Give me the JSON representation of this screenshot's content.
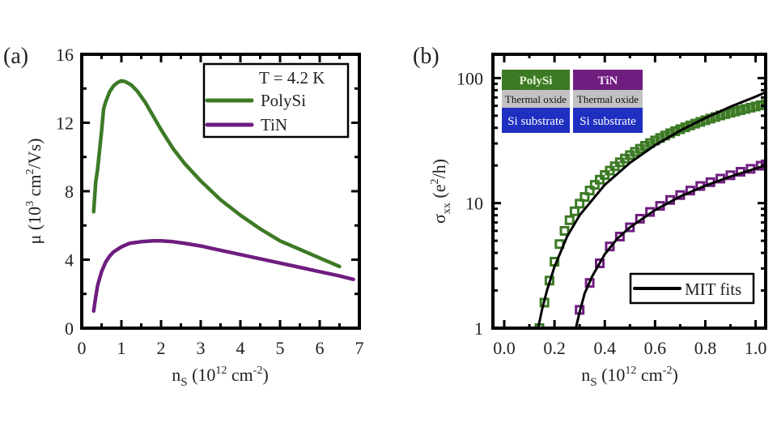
{
  "colors": {
    "polysi": "#3c7a25",
    "tin": "#6f1d7f",
    "fit": "#000000",
    "thermal_oxide": "#c2c2c2",
    "si_substrate": "#1f2fc0"
  },
  "chart_data": [
    {
      "panel": "(a)",
      "type": "line",
      "title": "",
      "xlabel": "n_S (10^12 cm^-2)",
      "xlabel_parts": {
        "main": "n",
        "sub": "S",
        "rest": " (10",
        "sup": "12",
        "rest2": " cm",
        "sup2": "-2",
        "end": ")"
      },
      "ylabel": "μ (10^3 cm^2/Vs)",
      "ylabel_parts": {
        "main": "μ (10",
        "sup": "3",
        "rest": " cm",
        "sup2": "2",
        "end": "/Vs)"
      },
      "xlim": [
        0,
        7
      ],
      "ylim": [
        0,
        16
      ],
      "xticks": [
        "0",
        "1",
        "2",
        "3",
        "4",
        "5",
        "6",
        "7"
      ],
      "yticks": [
        "0",
        "4",
        "8",
        "12",
        "16"
      ],
      "grid": false,
      "legend": {
        "placement": "top-right",
        "header": "T = 4.2 K",
        "entries": [
          "PolySi",
          "TiN"
        ]
      },
      "series": [
        {
          "name": "PolySi",
          "x": [
            0.3,
            0.35,
            0.4,
            0.5,
            0.55,
            0.6,
            0.7,
            0.8,
            0.9,
            1.0,
            1.1,
            1.25,
            1.4,
            1.6,
            1.8,
            2.0,
            2.3,
            2.6,
            3.0,
            3.5,
            4.0,
            4.5,
            5.0,
            5.5,
            6.0,
            6.5
          ],
          "y": [
            6.8,
            8.5,
            9.3,
            11.5,
            12.8,
            13.2,
            13.8,
            14.15,
            14.35,
            14.45,
            14.4,
            14.2,
            13.85,
            13.2,
            12.4,
            11.6,
            10.5,
            9.6,
            8.6,
            7.5,
            6.6,
            5.8,
            5.1,
            4.6,
            4.1,
            3.6
          ]
        },
        {
          "name": "TiN",
          "x": [
            0.3,
            0.35,
            0.4,
            0.5,
            0.6,
            0.7,
            0.8,
            1.0,
            1.2,
            1.5,
            1.8,
            2.0,
            2.3,
            2.6,
            3.0,
            3.5,
            4.0,
            4.5,
            5.0,
            5.5,
            6.0,
            6.5,
            6.85
          ],
          "y": [
            1.0,
            1.8,
            2.5,
            3.3,
            3.85,
            4.2,
            4.45,
            4.75,
            4.95,
            5.05,
            5.1,
            5.1,
            5.05,
            4.95,
            4.8,
            4.55,
            4.3,
            4.05,
            3.8,
            3.55,
            3.3,
            3.05,
            2.85
          ]
        }
      ]
    },
    {
      "panel": "(b)",
      "type": "scatter",
      "title": "",
      "xlabel": "n_S (10^12 cm^-2)",
      "xlabel_parts": {
        "main": "n",
        "sub": "S",
        "rest": " (10",
        "sup": "12",
        "rest2": " cm",
        "sup2": "-2",
        "end": ")"
      },
      "ylabel": "σ_xx (e^2/h)",
      "ylabel_parts": {
        "main": "σ",
        "sub": "xx",
        "rest": " (e",
        "sup": "2",
        "end": "/h)"
      },
      "xlim": [
        -0.045,
        1.04
      ],
      "ylim": [
        1,
        155
      ],
      "yscale": "log",
      "xticks": [
        "0.0",
        "0.2",
        "0.4",
        "0.6",
        "0.8",
        "1.0"
      ],
      "yticks": [
        "1",
        "10",
        "100"
      ],
      "grid": false,
      "legend": {
        "placement": "bottom-right",
        "entries": [
          "MIT fits"
        ]
      },
      "inset_stacks": [
        {
          "gate": "PolySi",
          "oxide": "Thermal oxide",
          "substrate": "Si substrate"
        },
        {
          "gate": "TiN",
          "oxide": "Thermal oxide",
          "substrate": "Si substrate"
        }
      ],
      "series": [
        {
          "name": "PolySi",
          "marker": "open-square",
          "x": [
            0.14,
            0.16,
            0.18,
            0.2,
            0.22,
            0.24,
            0.26,
            0.28,
            0.3,
            0.32,
            0.34,
            0.36,
            0.38,
            0.4,
            0.42,
            0.44,
            0.46,
            0.48,
            0.5,
            0.52,
            0.54,
            0.56,
            0.58,
            0.6,
            0.62,
            0.64,
            0.66,
            0.68,
            0.7,
            0.72,
            0.74,
            0.76,
            0.78,
            0.8,
            0.82,
            0.84,
            0.86,
            0.88,
            0.9,
            0.92,
            0.94,
            0.96,
            0.98,
            1.0,
            1.02,
            1.04
          ],
          "y": [
            1.0,
            1.6,
            2.4,
            3.4,
            4.7,
            6.0,
            7.3,
            8.6,
            9.9,
            11.2,
            12.6,
            14.0,
            15.4,
            16.8,
            18.2,
            19.7,
            21.2,
            22.7,
            24.2,
            25.7,
            27.2,
            28.7,
            30.2,
            31.7,
            33.2,
            34.7,
            36.2,
            37.6,
            39.0,
            40.4,
            41.8,
            43.2,
            44.6,
            46.0,
            47.4,
            48.8,
            50.2,
            51.5,
            52.8,
            54.1,
            55.4,
            56.7,
            58.0,
            59.3,
            60.6,
            62.0
          ]
        },
        {
          "name": "TiN",
          "marker": "open-square",
          "x": [
            0.3,
            0.34,
            0.38,
            0.42,
            0.46,
            0.5,
            0.54,
            0.58,
            0.62,
            0.66,
            0.7,
            0.74,
            0.78,
            0.82,
            0.86,
            0.9,
            0.94,
            0.98,
            1.02,
            1.04
          ],
          "y": [
            1.4,
            2.3,
            3.3,
            4.5,
            5.4,
            6.4,
            7.5,
            8.5,
            9.5,
            10.6,
            11.6,
            12.6,
            13.7,
            14.7,
            15.7,
            16.7,
            17.8,
            18.8,
            19.9,
            20.4
          ]
        },
        {
          "name": "MIT fit PolySi",
          "type": "line",
          "x": [
            0.135,
            0.15,
            0.17,
            0.2,
            0.25,
            0.3,
            0.4,
            0.5,
            0.6,
            0.7,
            0.8,
            0.9,
            1.0,
            1.04
          ],
          "y": [
            1.0,
            1.4,
            2.0,
            3.1,
            5.4,
            8.0,
            14.0,
            21.0,
            29.0,
            38.0,
            48.0,
            59.0,
            71.0,
            77.0
          ]
        },
        {
          "name": "MIT fit TiN",
          "type": "line",
          "x": [
            0.285,
            0.3,
            0.32,
            0.35,
            0.4,
            0.45,
            0.5,
            0.6,
            0.7,
            0.8,
            0.9,
            1.0,
            1.04
          ],
          "y": [
            1.0,
            1.35,
            1.9,
            2.6,
            3.9,
            5.2,
            6.4,
            8.8,
            11.3,
            13.8,
            16.3,
            18.9,
            20.0
          ]
        }
      ]
    }
  ]
}
